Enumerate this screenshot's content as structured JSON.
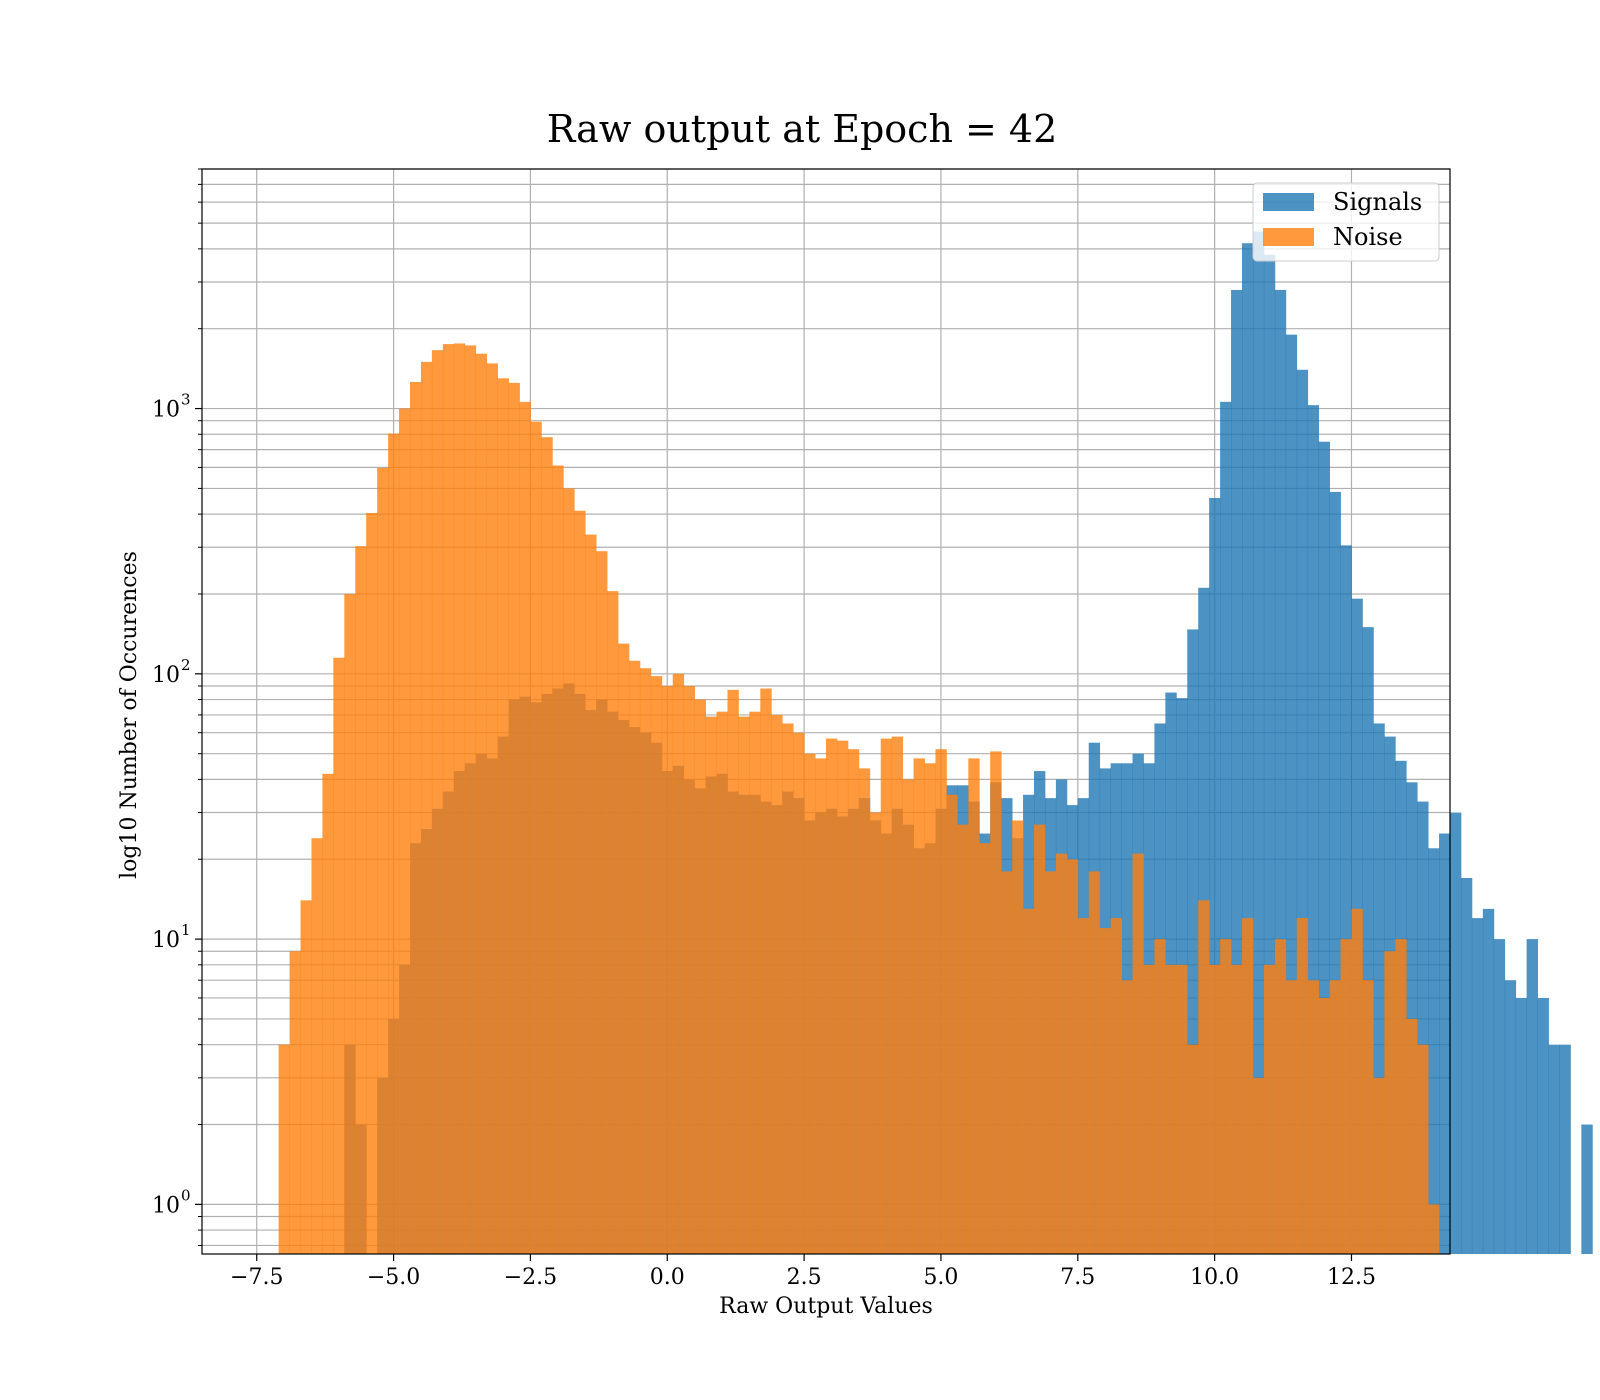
{
  "chart_data": {
    "type": "histogram",
    "title": "Raw output at Epoch = 42",
    "xlabel": "Raw Output Values",
    "ylabel": "log10 Number of Occurences",
    "y_scale": "log",
    "xlim": [
      -8.5,
      14.3
    ],
    "ylim": [
      0.65,
      8000
    ],
    "x_ticks": [
      -7.5,
      -5.0,
      -2.5,
      0.0,
      2.5,
      5.0,
      7.5,
      10.0,
      12.5
    ],
    "x_tick_labels": [
      "−7.5",
      "−5.0",
      "−2.5",
      "0.0",
      "2.5",
      "5.0",
      "7.5",
      "10.0",
      "12.5"
    ],
    "y_ticks": [
      {
        "value": 1,
        "base": "10",
        "exp": "0"
      },
      {
        "value": 10,
        "base": "10",
        "exp": "1"
      },
      {
        "value": 100,
        "base": "10",
        "exp": "2"
      },
      {
        "value": 1000,
        "base": "10",
        "exp": "3"
      }
    ],
    "grid": true,
    "legend_position": "top-right",
    "series": [
      {
        "name": "Signals",
        "color": "#1f77b4",
        "alpha": 0.8,
        "bin_start": -5.9,
        "bin_width": 0.2,
        "counts": [
          4,
          2,
          0,
          3,
          5,
          8,
          23,
          26,
          31,
          36,
          43,
          46,
          50,
          48,
          58,
          80,
          82,
          78,
          84,
          88,
          92,
          84,
          73,
          80,
          72,
          67,
          63,
          60,
          55,
          43,
          45,
          40,
          37,
          41,
          42,
          36,
          35,
          35,
          33,
          32,
          36,
          34,
          28,
          30,
          31,
          29,
          31,
          34,
          28,
          25,
          31,
          27,
          22,
          23,
          31,
          38,
          38,
          33,
          25,
          39,
          34,
          24,
          35,
          43,
          34,
          40,
          32,
          34,
          55,
          44,
          46,
          46,
          50,
          46,
          65,
          85,
          81,
          147,
          211,
          460,
          1060,
          2800,
          4200,
          4650,
          3800,
          2800,
          1900,
          1400,
          1030,
          750,
          485,
          305,
          192,
          150,
          65,
          58,
          47,
          39,
          33,
          22,
          25,
          30,
          17,
          12,
          13,
          10,
          7,
          6,
          10,
          6,
          4,
          4,
          0,
          2
        ]
      },
      {
        "name": "Noise",
        "color": "#ff7f0e",
        "alpha": 0.8,
        "bin_start": -7.1,
        "bin_width": 0.2,
        "counts": [
          4,
          9,
          14,
          24,
          42,
          115,
          200,
          303,
          404,
          597,
          805,
          1000,
          1260,
          1500,
          1660,
          1750,
          1760,
          1730,
          1610,
          1480,
          1300,
          1250,
          1060,
          892,
          780,
          610,
          500,
          412,
          335,
          290,
          205,
          130,
          112,
          105,
          98,
          90,
          100,
          90,
          80,
          69,
          72,
          87,
          69,
          72,
          88,
          70,
          65,
          60,
          50,
          48,
          57,
          56,
          52,
          44,
          30,
          57,
          58,
          40,
          48,
          46,
          52,
          35,
          27,
          48,
          23,
          51,
          18,
          28,
          13,
          27,
          18,
          21,
          20,
          12,
          18,
          11,
          12,
          7,
          21,
          8,
          10,
          8,
          8,
          4,
          14,
          8,
          10,
          8,
          12,
          3,
          8,
          10,
          7,
          12,
          7,
          6,
          7,
          10,
          13,
          7,
          3,
          9,
          10,
          5,
          4,
          1
        ]
      }
    ]
  }
}
